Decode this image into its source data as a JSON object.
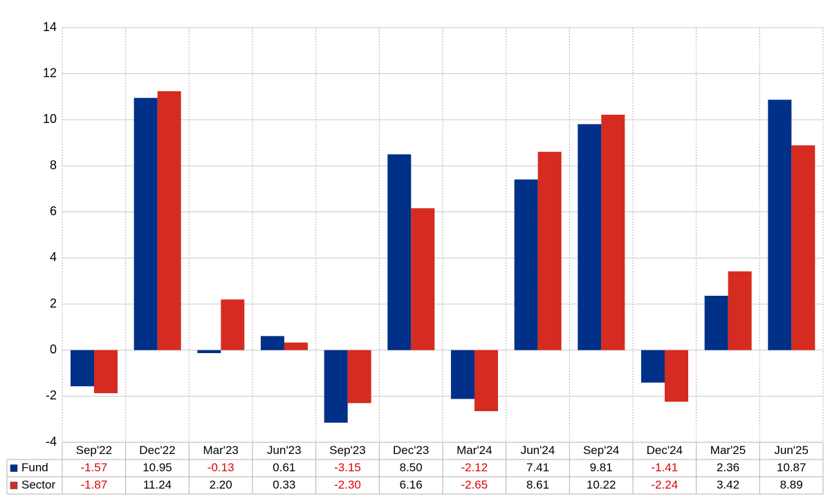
{
  "chart_data": {
    "type": "bar",
    "categories": [
      "Sep'22",
      "Dec'22",
      "Mar'23",
      "Jun'23",
      "Sep'23",
      "Dec'23",
      "Mar'24",
      "Jun'24",
      "Sep'24",
      "Dec'24",
      "Mar'25",
      "Jun'25"
    ],
    "series": [
      {
        "name": "Fund",
        "color": "#003087",
        "values": [
          -1.57,
          10.95,
          -0.13,
          0.61,
          -3.15,
          8.5,
          -2.12,
          7.41,
          9.81,
          -1.41,
          2.36,
          10.87
        ],
        "value_labels": [
          "-1.57",
          "10.95",
          "-0.13",
          "0.61",
          "-3.15",
          "8.50",
          "-2.12",
          "7.41",
          "9.81",
          "-1.41",
          "2.36",
          "10.87"
        ]
      },
      {
        "name": "Sector",
        "color": "#d62b20",
        "values": [
          -1.87,
          11.24,
          2.2,
          0.33,
          -2.3,
          6.16,
          -2.65,
          8.61,
          10.22,
          -2.24,
          3.42,
          8.89
        ],
        "value_labels": [
          "-1.87",
          "11.24",
          "2.20",
          "0.33",
          "-2.30",
          "6.16",
          "-2.65",
          "8.61",
          "10.22",
          "-2.24",
          "3.42",
          "8.89"
        ]
      }
    ],
    "ylim": [
      -4,
      14
    ],
    "yticks": [
      -4,
      -2,
      0,
      2,
      4,
      6,
      8,
      10,
      12,
      14
    ],
    "grid": true,
    "negative_label_color": "#e00000"
  }
}
